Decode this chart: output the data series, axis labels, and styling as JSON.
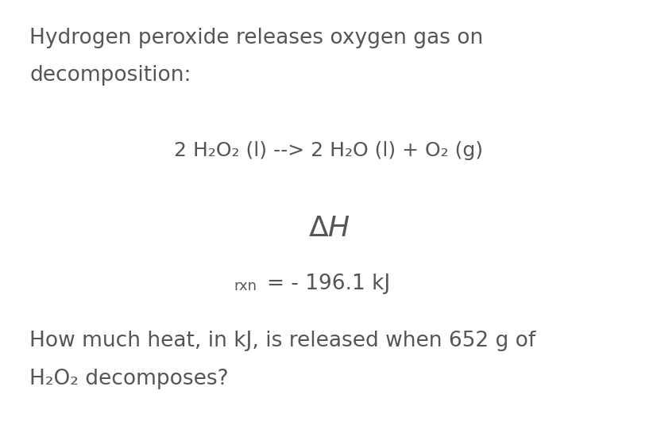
{
  "background_color": "#ffffff",
  "text_color": "#555555",
  "fig_width": 8.28,
  "fig_height": 5.31,
  "dpi": 100,
  "line1": "Hydrogen peroxide releases oxygen gas on",
  "line2": "decomposition:",
  "reaction": "2 H₂O₂ (l) --> 2 H₂O (l) + O₂ (g)",
  "rxn_label": "rxn",
  "rxn_value": "= - 196.1 kJ",
  "question_line1": "How much heat, in kJ, is released when 652 g of",
  "question_line2": "H₂O₂ decomposes?",
  "font_size_text": 19,
  "font_size_reaction": 18,
  "font_size_delta": 26,
  "font_size_rxn_sub": 13,
  "font_size_rxn_value": 19,
  "font_family": "DejaVu Sans"
}
